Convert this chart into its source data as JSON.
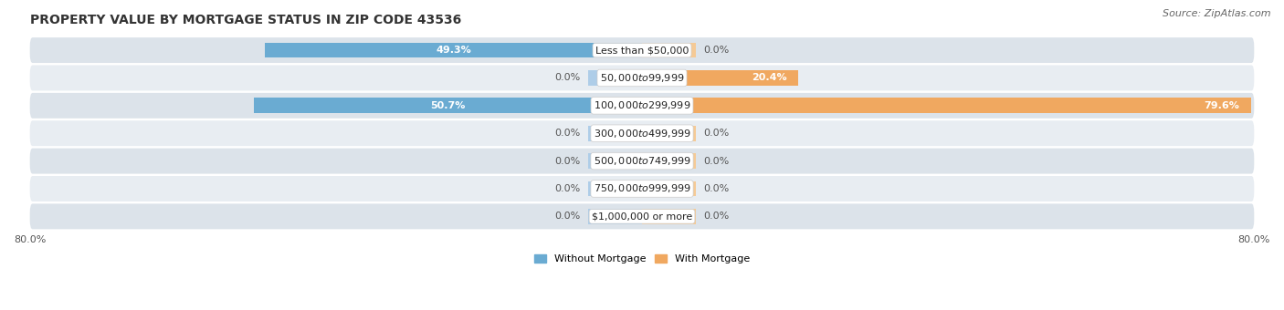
{
  "title": "PROPERTY VALUE BY MORTGAGE STATUS IN ZIP CODE 43536",
  "source": "Source: ZipAtlas.com",
  "categories": [
    "Less than $50,000",
    "$50,000 to $99,999",
    "$100,000 to $299,999",
    "$300,000 to $499,999",
    "$500,000 to $749,999",
    "$750,000 to $999,999",
    "$1,000,000 or more"
  ],
  "without_mortgage": [
    49.3,
    0.0,
    50.7,
    0.0,
    0.0,
    0.0,
    0.0
  ],
  "with_mortgage": [
    0.0,
    20.4,
    79.6,
    0.0,
    0.0,
    0.0,
    0.0
  ],
  "color_without": "#6aabd2",
  "color_with": "#f0a860",
  "color_without_light": "#aecde8",
  "color_with_light": "#f5ca96",
  "row_colors": [
    "#dce3ea",
    "#e8edf2"
  ],
  "xlim": [
    -80,
    80
  ],
  "stub_size": 7,
  "title_fontsize": 10,
  "source_fontsize": 8,
  "value_label_fontsize": 8,
  "category_fontsize": 8,
  "tick_fontsize": 8,
  "legend_labels": [
    "Without Mortgage",
    "With Mortgage"
  ],
  "axis_label_left": "80.0%",
  "axis_label_right": "80.0%"
}
